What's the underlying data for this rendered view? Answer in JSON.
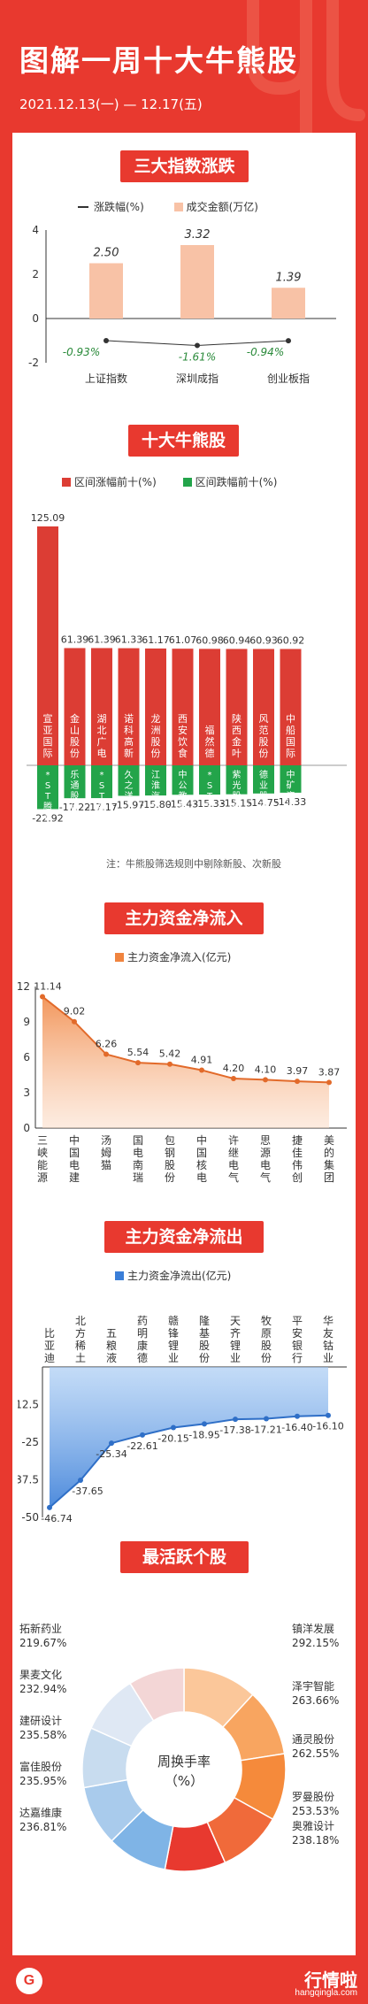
{
  "header": {
    "title": "图解一周十大牛熊股",
    "date_range": "2021.12.13(一) — 12.17(五)"
  },
  "colors": {
    "primary_red": "#e8392f",
    "bar_red": "#dc3d34",
    "bar_green": "#23a44a",
    "salmon": "#f8c2a6",
    "area_orange": "#f0843f",
    "blue": "#3a7ed8"
  },
  "sections": {
    "indices_title": "三大指数涨跌",
    "bull_bear_title": "十大牛熊股",
    "inflow_title": "主力资金净流入",
    "outflow_title": "主力资金净流出",
    "active_title": "最活跃个股"
  },
  "bull_bear_note": "注：牛熊股筛选规则中剔除新股、次新股",
  "chart_data": [
    {
      "type": "bar",
      "title": "三大指数涨跌",
      "categories": [
        "上证指数",
        "深圳成指",
        "创业板指"
      ],
      "series": [
        {
          "name": "涨跌幅(%)",
          "kind": "line",
          "values": [
            -0.93,
            -1.61,
            -0.94
          ]
        },
        {
          "name": "成交金额(万亿)",
          "kind": "bar",
          "values": [
            2.5,
            3.32,
            1.39
          ]
        }
      ],
      "ylim": [
        -2,
        4
      ],
      "yticks": [
        4,
        2,
        0,
        -2
      ]
    },
    {
      "type": "bar",
      "title": "十大牛熊股",
      "series": [
        {
          "name": "区间涨幅前十(%)",
          "categories": [
            "宣亚国际",
            "金山股份",
            "湖北广电",
            "诺科高新",
            "龙洲股份",
            "西安饮食",
            "福然德",
            "陕西金叶",
            "风范股份",
            "中船国际"
          ],
          "values": [
            125.09,
            61.39,
            61.39,
            61.33,
            61.17,
            61.07,
            60.98,
            60.94,
            60.93,
            60.92
          ]
        },
        {
          "name": "区间跌幅前十(%)",
          "categories": [
            "*ST腾邦",
            "乐通股份",
            "*ST嘉信",
            "久之洋",
            "江淮汽车",
            "中公教育",
            "*ST凯瑞",
            "紫光股份",
            "德业股份",
            "中矿资源"
          ],
          "values": [
            -22.92,
            -17.22,
            -17.17,
            -15.97,
            -15.8,
            -15.43,
            -15.33,
            -15.15,
            -14.75,
            -14.33
          ]
        }
      ]
    },
    {
      "type": "area",
      "title": "主力资金净流入",
      "categories": [
        "三峡能源",
        "中国电建",
        "汤姆猫",
        "国电南瑞",
        "包钢股份",
        "中国核电",
        "许继电气",
        "思源电气",
        "捷佳伟创",
        "美的集团"
      ],
      "series": [
        {
          "name": "主力资金净流入(亿元)",
          "values": [
            11.14,
            9.02,
            6.26,
            5.54,
            5.42,
            4.91,
            4.2,
            4.1,
            3.97,
            3.87
          ]
        }
      ],
      "ylim": [
        0,
        12
      ],
      "yticks": [
        12,
        9,
        6,
        3,
        0
      ]
    },
    {
      "type": "area",
      "title": "主力资金净流出",
      "categories": [
        "比亚迪",
        "北方稀土",
        "五粮液",
        "药明康德",
        "赣锋锂业",
        "隆基股份",
        "天齐锂业",
        "牧原股份",
        "平安银行",
        "华友钴业"
      ],
      "series": [
        {
          "name": "主力资金净流出(亿元)",
          "values": [
            -46.74,
            -37.65,
            -25.34,
            -22.61,
            -20.15,
            -18.95,
            -17.38,
            -17.21,
            -16.4,
            -16.1
          ]
        }
      ],
      "ylim": [
        -50,
        0
      ],
      "yticks": [
        -12.5,
        -25,
        -37.5,
        -50
      ]
    },
    {
      "type": "pie",
      "title": "最活跃个股",
      "center_label": "周换手率（%）",
      "labels": [
        "拓新药业",
        "果麦文化",
        "建研设计",
        "富佳股份",
        "达嘉维康",
        "奥雅设计",
        "罗曼股份",
        "通灵股份",
        "泽宇智能",
        "镇洋发展"
      ],
      "values": [
        219.67,
        232.94,
        235.58,
        235.95,
        236.81,
        238.18,
        253.53,
        262.55,
        263.66,
        292.15
      ]
    }
  ],
  "footer": {
    "brand": "行情啦",
    "brand_sub": "hangqingla.com"
  }
}
